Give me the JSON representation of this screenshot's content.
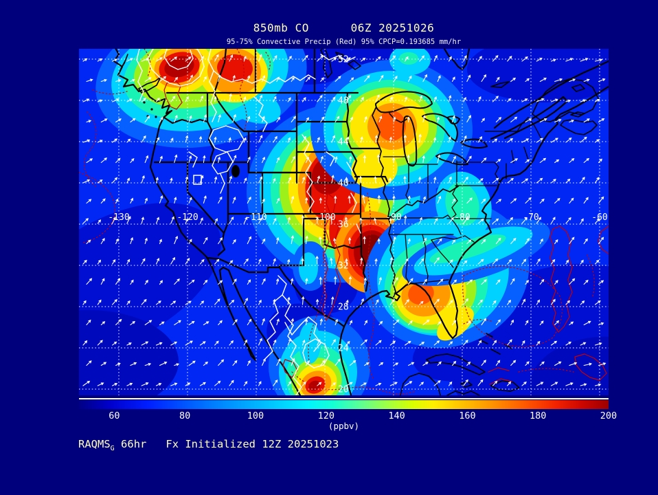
{
  "header": {
    "title": "850mb CO      06Z 20251026",
    "subtitle": "95-75% Convective Precip (Red) 95% CPCP=0.193685 mm/hr"
  },
  "footer": {
    "model": "RAQMS",
    "model_subscript": "G",
    "text": " 66hr   Fx Initialized 12Z 20251023"
  },
  "colorbar": {
    "tick_labels": [
      "60",
      "80",
      "100",
      "120",
      "140",
      "160",
      "180",
      "200"
    ],
    "tick_values": [
      60,
      80,
      100,
      120,
      140,
      160,
      180,
      200
    ],
    "range_min": 50,
    "range_max": 200,
    "units": "(ppbv)",
    "gradient_stops": [
      [
        0,
        "#000085"
      ],
      [
        6,
        "#0000cd"
      ],
      [
        13,
        "#001eff"
      ],
      [
        20,
        "#0055ff"
      ],
      [
        28,
        "#0090ff"
      ],
      [
        36,
        "#00c3ff"
      ],
      [
        43,
        "#00f2ff"
      ],
      [
        48,
        "#15ffd4"
      ],
      [
        53,
        "#5aff96"
      ],
      [
        58,
        "#9dff46"
      ],
      [
        63,
        "#d8ff00"
      ],
      [
        67,
        "#ffee00"
      ],
      [
        72,
        "#ffc400"
      ],
      [
        78,
        "#ff9300"
      ],
      [
        84,
        "#ff5a00"
      ],
      [
        90,
        "#f22300"
      ],
      [
        95,
        "#cc0600"
      ],
      [
        100,
        "#9c0000"
      ]
    ]
  },
  "map": {
    "lat_labels": [
      "52",
      "48",
      "44",
      "40",
      "36",
      "32",
      "28",
      "24",
      "20"
    ],
    "lon_labels": [
      "-130",
      "-120",
      "-110",
      "-100",
      "-90",
      "-80",
      "-70",
      "-60"
    ]
  },
  "colors": {
    "background": "#00007d",
    "title_text": "#ffffc2",
    "label_text": "#ffffff",
    "geography_outline": "#000000",
    "precip_contour_75": "#ffffff",
    "precip_contour_95": "#c80000",
    "grid": "#ffffff",
    "co_palette": {
      "base": "#0127f5",
      "dk1": "#000fd2",
      "dk2": "#0009bb",
      "lb": "#0560ff",
      "cy": "#00d2ff",
      "aq": "#18f2b4",
      "yg": "#9ef01a",
      "ye": "#ffe800",
      "or": "#ff9a00",
      "ro": "#ff5400",
      "re": "#e81000",
      "dr": "#b20000",
      "xr": "#860000"
    }
  },
  "chart_data": {
    "type": "heatmap",
    "title": "850mb CO      06Z 20251026",
    "units": "ppbv",
    "scale_ticks": [
      60,
      80,
      100,
      120,
      140,
      160,
      180,
      200
    ],
    "scale_range": [
      50,
      200
    ],
    "lat_range": [
      20,
      52
    ],
    "lon_range": [
      -130,
      -60
    ],
    "overlays": [
      "wind vectors",
      "75% convective precip (white contours)",
      "95% convective precip (red contours)",
      "lat/lon dotted grid"
    ],
    "high_co_regions": [
      "British Columbia coast (~200 ppbv)",
      "Alberta/Saskatchewan (~180 ppbv)",
      "Wisconsin / Lake Michigan (~165 ppbv)",
      "Nebraska-Kansas-Iowa-Missouri (~185 ppbv)",
      "Arkansas-Louisiana (~200 ppbv)",
      "Alabama-Georgia (~160 ppbv)",
      "west-central Mexico (~185 ppbv)"
    ]
  }
}
